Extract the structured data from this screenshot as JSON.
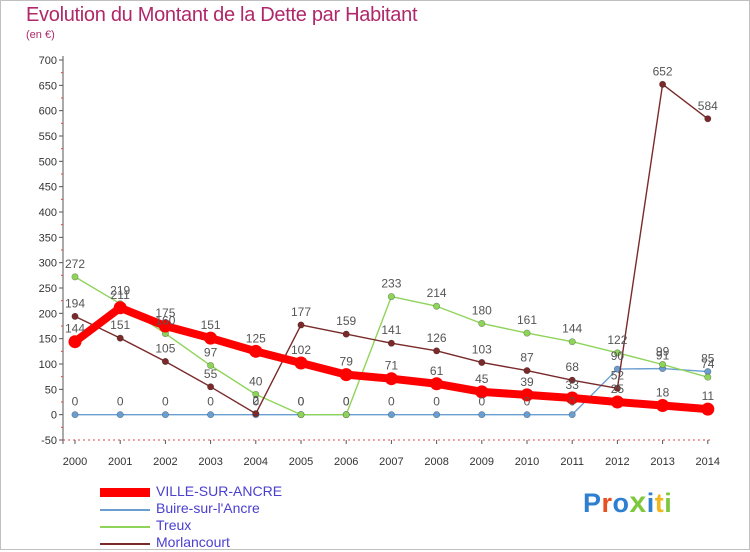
{
  "title": "Evolution du Montant de la Dette par Habitant",
  "unit": "(en €)",
  "brand": {
    "text": "Proxiti",
    "letter_colors": [
      "#2e7fd1",
      "#e8511e",
      "#2e7fd1",
      "#7dc83c",
      "#2e7fd1",
      "#f0b81e",
      "#7dc83c"
    ]
  },
  "chart_data": {
    "type": "line",
    "title": "Evolution du Montant de la Dette par Habitant",
    "ylabel": "(en €)",
    "xlabel": "",
    "x": [
      "2000",
      "2001",
      "2002",
      "2003",
      "2004",
      "2005",
      "2006",
      "2007",
      "2008",
      "2009",
      "2010",
      "2011",
      "2012",
      "2013",
      "2014"
    ],
    "ylim": [
      -50,
      700
    ],
    "yticks": [
      "-50",
      "0",
      "50",
      "100",
      "150",
      "200",
      "250",
      "300",
      "350",
      "400",
      "450",
      "500",
      "550",
      "600",
      "650",
      "700"
    ],
    "grid": false,
    "legend_position": "bottom-left",
    "series": [
      {
        "name": "VILLE-SUR-ANCRE",
        "color": "#ff0000",
        "values": [
          144,
          211,
          175,
          151,
          125,
          102,
          79,
          71,
          61,
          45,
          39,
          33,
          25,
          18,
          11
        ],
        "labels": [
          "144",
          "211",
          "175",
          "151",
          "125",
          "102",
          "79",
          "71",
          "61",
          "45",
          "39",
          "33",
          "25",
          "18",
          "11"
        ]
      },
      {
        "name": "Buire-sur-l'Ancre",
        "color": "#6a9ed1",
        "values": [
          0,
          0,
          0,
          0,
          0,
          0,
          0,
          0,
          0,
          0,
          0,
          0,
          90,
          91,
          85
        ],
        "labels": [
          "0",
          "0",
          "0",
          "0",
          "0",
          "0",
          "0",
          "0",
          "0",
          "0",
          "0",
          "0",
          "90",
          "91",
          "85"
        ]
      },
      {
        "name": "Treux",
        "color": "#8fd45a",
        "values": [
          272,
          219,
          160,
          97,
          40,
          0,
          0,
          233,
          214,
          180,
          161,
          144,
          122,
          99,
          74
        ],
        "labels": [
          "272",
          "219",
          "160",
          "97",
          "40",
          "0",
          "0",
          "233",
          "214",
          "180",
          "161",
          "144",
          "122",
          "99",
          "74"
        ]
      },
      {
        "name": "Morlancourt",
        "color": "#7a2a2a",
        "values": [
          194,
          151,
          105,
          55,
          2,
          177,
          159,
          141,
          126,
          103,
          87,
          68,
          52,
          652,
          584
        ],
        "labels": [
          "194",
          "151",
          "105",
          "55",
          "2",
          "177",
          "159",
          "141",
          "126",
          "103",
          "87",
          "68",
          "52",
          "652",
          "584"
        ]
      }
    ]
  }
}
